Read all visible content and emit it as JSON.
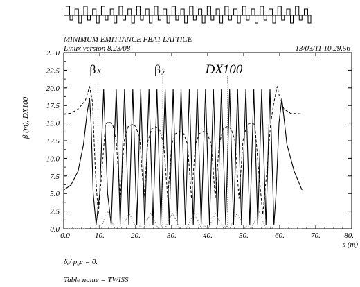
{
  "header": {
    "title": "MINIMUM EMITTANCE FBA1 LATTICE",
    "version": "Linux version 8.23/08",
    "datetime": "13/03/11  10.29.56"
  },
  "footer": {
    "delta_label": "δₑ/ p₀c  =  0.",
    "table_label": "Table name = TWISS"
  },
  "chart_data": {
    "type": "line",
    "title": "MINIMUM EMITTANCE FBA1 LATTICE",
    "xlabel": "s (m)",
    "ylabel": "β  (m), DX100",
    "xlim": [
      0,
      80
    ],
    "ylim": [
      0,
      25
    ],
    "x_tick_labels": [
      "0.0",
      "10.",
      "20.",
      "30.",
      "40.",
      "50.",
      "60.",
      "70.",
      "80."
    ],
    "y_tick_labels": [
      "0.0",
      "2.5",
      "5.0",
      "7.5",
      "10.0",
      "12.5",
      "15.0",
      "17.5",
      "20.0",
      "22.5",
      "25.0"
    ],
    "legend": [
      {
        "name": "β x",
        "style": "solid",
        "marker_s": 9.5
      },
      {
        "name": "β y",
        "style": "dashed",
        "marker_s": 27.5
      },
      {
        "name": "DX100",
        "style": "dotted",
        "marker_s": 45.5
      }
    ],
    "series": [
      {
        "name": "β x",
        "style": "solid",
        "x": [
          0,
          2,
          4,
          5.5,
          6.5,
          7.2,
          7.6,
          8.2,
          9.0,
          10.0,
          11.1,
          12.2,
          13.2,
          14.6,
          15.7,
          16.9,
          18.1,
          19.2,
          20.3,
          21.4,
          22.5,
          23.7,
          24.8,
          25.9,
          27.0,
          28.2,
          29.3,
          30.4,
          31.5,
          32.6,
          33.8,
          34.9,
          36.0,
          37.1,
          38.2,
          39.4,
          40.5,
          41.6,
          42.7,
          43.8,
          45.0,
          46.1,
          47.2,
          48.3,
          49.4,
          50.6,
          51.7,
          52.8,
          53.9,
          55.0,
          56.2,
          57.3,
          58.4,
          59.0,
          59.8,
          60.6,
          62.0,
          64.0,
          66.2
        ],
        "y": [
          5.5,
          6.2,
          8.2,
          12.0,
          16.5,
          18.5,
          15.0,
          5.0,
          0.6,
          5.0,
          19.8,
          5.0,
          0.6,
          19.8,
          0.6,
          19.8,
          0.6,
          19.8,
          0.6,
          19.8,
          0.6,
          19.8,
          0.6,
          19.8,
          0.6,
          19.8,
          0.6,
          19.8,
          0.6,
          19.8,
          0.6,
          19.8,
          0.6,
          19.8,
          0.6,
          19.8,
          0.6,
          19.8,
          0.6,
          19.8,
          0.6,
          19.8,
          0.6,
          19.8,
          0.6,
          19.8,
          0.6,
          19.8,
          0.6,
          19.8,
          0.6,
          19.8,
          0.6,
          5.0,
          15.0,
          18.5,
          12.0,
          8.2,
          5.5
        ]
      },
      {
        "name": "β y",
        "style": "dashed",
        "x": [
          0,
          2,
          4,
          6,
          7.2,
          8.0,
          8.8,
          9.6,
          10.6,
          11.6,
          12.6,
          13.6,
          14.6,
          15.7,
          16.8,
          17.9,
          19.0,
          20.1,
          21.2,
          22.3,
          23.4,
          24.5,
          25.6,
          26.7,
          27.8,
          28.9,
          30.0,
          31.1,
          32.2,
          33.3,
          34.4,
          35.5,
          36.6,
          37.7,
          38.8,
          39.9,
          41.0,
          42.1,
          43.2,
          44.3,
          45.4,
          46.5,
          47.6,
          48.7,
          49.8,
          50.9,
          52.0,
          53.1,
          54.2,
          55.3,
          56.4,
          57.5,
          58.4,
          59.3,
          60.2,
          61.2,
          63.0,
          66.2
        ],
        "y": [
          16.3,
          16.4,
          17.0,
          18.2,
          20.2,
          18.0,
          8.0,
          2.0,
          8.0,
          14.8,
          15.2,
          14.8,
          12.5,
          4.3,
          12.5,
          14.5,
          14.8,
          14.5,
          12.5,
          4.3,
          12.5,
          14.2,
          14.5,
          14.0,
          12.0,
          4.3,
          12.0,
          13.5,
          13.8,
          13.5,
          12.0,
          4.3,
          12.0,
          13.5,
          13.8,
          13.5,
          12.0,
          4.3,
          12.0,
          14.2,
          14.5,
          14.2,
          12.5,
          4.3,
          12.5,
          14.8,
          15.0,
          14.8,
          8.0,
          2.0,
          8.0,
          15.0,
          18.0,
          20.2,
          18.2,
          17.0,
          16.4,
          16.3
        ]
      },
      {
        "name": "DX100",
        "style": "dotted",
        "x": [
          0,
          7.0,
          8.6,
          9.5,
          10.4,
          11.2,
          12.2,
          13.2,
          14.2,
          15.2,
          16.2,
          17.2,
          18.2,
          19.2,
          20.2,
          21.2,
          22.2,
          23.2,
          24.2,
          25.2,
          26.2,
          27.2,
          28.2,
          29.2,
          30.2,
          31.2,
          32.2,
          33.2,
          34.2,
          35.2,
          36.2,
          37.2,
          38.2,
          39.2,
          40.2,
          41.2,
          42.2,
          43.2,
          44.2,
          45.2,
          46.2,
          47.2,
          48.2,
          49.2,
          50.2,
          51.2,
          52.2,
          53.2,
          54.2,
          55.2,
          56.2,
          57.2,
          58.2,
          66.2
        ],
        "y": [
          0,
          0,
          0,
          0.4,
          0.1,
          1.2,
          2.5,
          1.2,
          0.1,
          0.4,
          0.1,
          1.2,
          2.2,
          1.2,
          0.1,
          0.4,
          0.1,
          1.2,
          2.2,
          1.2,
          0.1,
          0.4,
          0.1,
          1.2,
          2.2,
          1.2,
          0.1,
          0.4,
          0.1,
          1.2,
          2.2,
          1.2,
          0.1,
          0.4,
          0.1,
          1.2,
          2.2,
          1.2,
          0.1,
          0.4,
          0.1,
          1.2,
          2.2,
          1.2,
          0.1,
          0.4,
          0.1,
          1.2,
          2.5,
          1.2,
          0.1,
          0.4,
          0,
          0
        ]
      }
    ]
  }
}
